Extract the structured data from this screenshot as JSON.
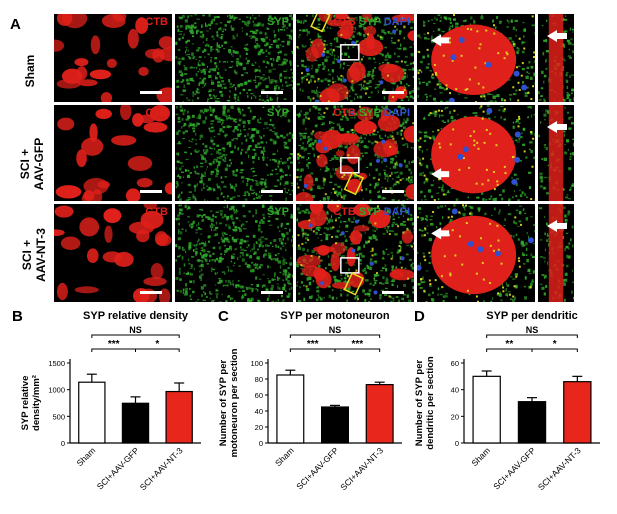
{
  "panel_letters": {
    "a": "A",
    "b": "B",
    "c": "C",
    "d": "D"
  },
  "rows": [
    {
      "label_line1": "Sham",
      "label_line2": ""
    },
    {
      "label_line1": "SCI +",
      "label_line2": "AAV-GFP"
    },
    {
      "label_line1": "SCI +",
      "label_line2": "AAV-NT-3"
    }
  ],
  "channels": {
    "ctb": "CTB",
    "syp": "SYP",
    "dapi": "DAPI"
  },
  "colors": {
    "red": "#e0201a",
    "green": "#2fa82a",
    "blue": "#3050d0",
    "yellow": "#e6e020",
    "white": "#ffffff",
    "black": "#000000"
  },
  "chart_data": [
    {
      "type": "bar",
      "title": "SYP relative density",
      "ylabel": "SYP relative density/mm²",
      "categories": [
        "Sham",
        "SCI+AAV-GFP",
        "SCI+AAV-NT-3"
      ],
      "values": [
        1140,
        745,
        965
      ],
      "errors": [
        150,
        120,
        160
      ],
      "bar_colors": [
        "#ffffff",
        "#000000",
        "#e8261c"
      ],
      "ylim": [
        0,
        1500
      ],
      "yticks": [
        0,
        500,
        1000,
        1500
      ],
      "significance": [
        {
          "from": 0,
          "to": 2,
          "label": "NS",
          "level": 2
        },
        {
          "from": 0,
          "to": 1,
          "label": "***",
          "level": 1
        },
        {
          "from": 1,
          "to": 2,
          "label": "*",
          "level": 1
        }
      ]
    },
    {
      "type": "bar",
      "title": "SYP per motoneuron",
      "ylabel": "Number of SYP per motoneuron per section",
      "categories": [
        "Sham",
        "SCI+AAV-GFP",
        "SCI+AAV-NT-3"
      ],
      "values": [
        85,
        45,
        73
      ],
      "errors": [
        6,
        2,
        3
      ],
      "bar_colors": [
        "#ffffff",
        "#000000",
        "#e8261c"
      ],
      "ylim": [
        0,
        100
      ],
      "yticks": [
        0,
        20,
        40,
        60,
        80,
        100
      ],
      "significance": [
        {
          "from": 0,
          "to": 2,
          "label": "NS",
          "level": 2
        },
        {
          "from": 0,
          "to": 1,
          "label": "***",
          "level": 1
        },
        {
          "from": 1,
          "to": 2,
          "label": "***",
          "level": 1
        }
      ]
    },
    {
      "type": "bar",
      "title": "SYP per dendritic",
      "ylabel": "Number of SYP per dendritic per section",
      "categories": [
        "Sham",
        "SCI+AAV-GFP",
        "SCI+AAV-NT-3"
      ],
      "values": [
        50,
        31,
        46
      ],
      "errors": [
        4,
        3,
        4
      ],
      "bar_colors": [
        "#ffffff",
        "#000000",
        "#e8261c"
      ],
      "ylim": [
        0,
        60
      ],
      "yticks": [
        0,
        20,
        40,
        60
      ],
      "significance": [
        {
          "from": 0,
          "to": 2,
          "label": "NS",
          "level": 2
        },
        {
          "from": 0,
          "to": 1,
          "label": "**",
          "level": 1
        },
        {
          "from": 1,
          "to": 2,
          "label": "*",
          "level": 1
        }
      ]
    }
  ]
}
